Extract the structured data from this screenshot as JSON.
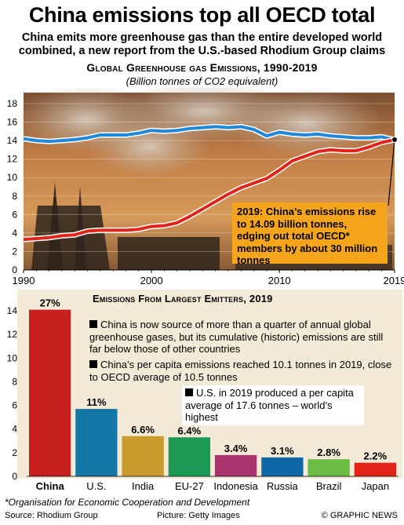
{
  "title": "China emissions top all OECD total",
  "subtitle_line1": "China emits more greenhouse gas than the entire developed world",
  "subtitle_line2": "combined, a new report from the U.S.-based Rhodium Group claims",
  "chart_data": [
    {
      "type": "line",
      "title": "Global Greenhouse gas Emissions, 1990-2019",
      "units": "(Billion tonnes of CO2 equivalent)",
      "xlim": [
        1990,
        2019
      ],
      "ylim": [
        0,
        18
      ],
      "x_ticks": [
        "1990",
        "2000",
        "2010",
        "2019"
      ],
      "y_ticks": [
        "0",
        "2",
        "4",
        "6",
        "8",
        "10",
        "12",
        "14",
        "16",
        "18"
      ],
      "grid": true,
      "x": [
        1990,
        1991,
        1992,
        1993,
        1994,
        1995,
        1996,
        1997,
        1998,
        1999,
        2000,
        2001,
        2002,
        2003,
        2004,
        2005,
        2006,
        2007,
        2008,
        2009,
        2010,
        2011,
        2012,
        2013,
        2014,
        2015,
        2016,
        2017,
        2018,
        2019
      ],
      "series": [
        {
          "color": "#1f88d8",
          "values": [
            14.2,
            14.0,
            13.9,
            14.0,
            14.1,
            14.3,
            14.6,
            14.6,
            14.6,
            14.8,
            15.1,
            15.0,
            15.1,
            15.3,
            15.4,
            15.5,
            15.4,
            15.5,
            15.2,
            14.5,
            14.9,
            14.7,
            14.6,
            14.7,
            14.5,
            14.4,
            14.3,
            14.3,
            14.4,
            14.06
          ]
        },
        {
          "color": "#e2231a",
          "values": [
            3.3,
            3.4,
            3.5,
            3.7,
            3.8,
            4.2,
            4.3,
            4.3,
            4.3,
            4.4,
            4.7,
            4.8,
            5.1,
            5.8,
            6.6,
            7.4,
            8.2,
            8.9,
            9.4,
            9.9,
            10.8,
            11.8,
            12.3,
            12.8,
            13.0,
            12.9,
            12.9,
            13.3,
            13.8,
            14.09
          ]
        }
      ],
      "annotation": "2019: China’s emissions rise to 14.09 billion tonnes, edging out total OECD* members by about 30 million tonnes"
    },
    {
      "type": "bar",
      "title": "Emissions From Largest Emitters, 2019",
      "categories": [
        "China",
        "U.S.",
        "India",
        "EU-27",
        "Indonesia",
        "Russia",
        "Brazil",
        "Japan"
      ],
      "values": [
        14.09,
        5.7,
        3.4,
        3.3,
        1.8,
        1.6,
        1.45,
        1.15
      ],
      "labels": [
        "27%",
        "11%",
        "6.6%",
        "6.4%",
        "3.4%",
        "3.1%",
        "2.8%",
        "2.2%"
      ],
      "colors": [
        "#c8201e",
        "#1577a6",
        "#c99a2e",
        "#1c9a54",
        "#a8336f",
        "#0f67a9",
        "#6cbd45",
        "#e2231a"
      ],
      "ylim": [
        0,
        14
      ],
      "y_ticks": [
        "0",
        "2",
        "4",
        "6",
        "8",
        "10",
        "12",
        "14"
      ],
      "notes": [
        "China is now source of more than a quarter of annual global greenhouse gases, but its cumulative (historic) emissions are still far below those of other countries",
        "China’s per capita emissions reached 10.1 tonnes in 2019, close to OECD average of 10.5 tonnes",
        "U.S. in 2019 produced a per capita average of 17.6 tonnes – world’s highest"
      ]
    }
  ],
  "footnote": "*Organisation for Economic Cooperation and Development",
  "source": "Source: Rhodium Group",
  "picture": "Picture: Getty Images",
  "credit": "© GRAPHIC NEWS",
  "colors": {
    "smoke_sky": "#c98a4c",
    "panel": "#f3ead8",
    "annotation": "#f4a51c"
  }
}
